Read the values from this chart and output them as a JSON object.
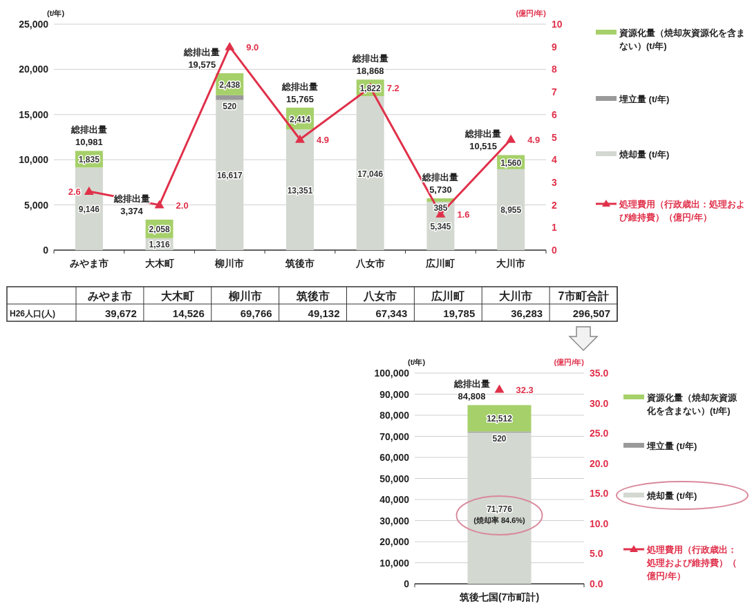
{
  "chart_data": [
    {
      "type": "bar",
      "stacked": true,
      "categories": [
        "みやま市",
        "大木町",
        "柳川市",
        "筑後市",
        "八女市",
        "広川町",
        "大川市"
      ],
      "ylabel": "(t/年)",
      "y2label": "(億円/年)",
      "ylim": [
        0,
        25000
      ],
      "yticks": [
        0,
        {
          "value": 5000,
          "label": "5,000"
        },
        {
          "value": 10000,
          "label": "10,000"
        },
        {
          "value": 15000,
          "label": "15,000"
        },
        {
          "value": 20000,
          "label": "20,000"
        },
        {
          "value": 25000,
          "label": "25,000"
        }
      ],
      "y2lim": [
        0,
        10
      ],
      "y2ticks": [
        0,
        1,
        2,
        3,
        4,
        5,
        6,
        7,
        8,
        9,
        10
      ],
      "grid": "y",
      "legend": "right",
      "series": [
        {
          "name": "焼却量 (t/年)",
          "color": "#d3d8d0",
          "values": [
            9146,
            1316,
            16617,
            13351,
            17046,
            5345,
            8955
          ],
          "value_labels": [
            "9,146",
            "1,316",
            "16,617",
            "13,351",
            "17,046",
            "5,345",
            "8,955"
          ]
        },
        {
          "name": "埋立量 (t/年)",
          "color": "#9a9a9a",
          "values": [
            0,
            0,
            520,
            0,
            0,
            0,
            0
          ],
          "value_labels": [
            null,
            null,
            "520",
            null,
            null,
            null,
            null
          ]
        },
        {
          "name": "資源化量（焼却灰資源化を含まない）(t/年)",
          "color": "#a6d06a",
          "values": [
            1835,
            2058,
            2438,
            2414,
            1822,
            385,
            1560
          ],
          "value_labels": [
            "1,835",
            "2,058",
            "2,438",
            "2,414",
            "1,822",
            "385",
            "1,560"
          ]
        },
        {
          "name": "処理費用（行政歳出：処理および維持費）（億円/年）",
          "type": "line",
          "axis": "y2",
          "color": "#e0304a",
          "marker": "triangle",
          "values": [
            2.6,
            2.0,
            9.0,
            4.9,
            7.2,
            1.6,
            4.9
          ],
          "value_labels": [
            "2.6",
            "2.0",
            "9.0",
            "4.9",
            "7.2",
            "1.6",
            "4.9"
          ]
        }
      ],
      "totals": [
        "総排出量 10,981",
        "総排出量 3,374",
        "総排出量 19,575",
        "総排出量 15,765",
        "総排出量 18,868",
        "総排出量 5,730",
        "総排出量 10,515"
      ]
    },
    {
      "type": "other",
      "categories": [
        "みやま市",
        "大木町",
        "柳川市",
        "筑後市",
        "八女市",
        "広川町",
        "大川市",
        "7市町合計"
      ],
      "y_categories": [
        "H26人口(人)"
      ],
      "cell_labels": [
        [
          "39,672",
          "14,526",
          "69,766",
          "49,132",
          "67,343",
          "19,785",
          "36,283",
          "296,507"
        ]
      ]
    },
    {
      "type": "bar",
      "stacked": true,
      "categories": [
        "筑後七国(7市町計)"
      ],
      "ylabel": "(t/年)",
      "y2label": "(億円/年)",
      "ylim": [
        0,
        100000
      ],
      "yticks": [
        0,
        {
          "value": 10000,
          "label": "10,000"
        },
        {
          "value": 20000,
          "label": "20,000"
        },
        {
          "value": 30000,
          "label": "30,000"
        },
        {
          "value": 40000,
          "label": "40,000"
        },
        {
          "value": 50000,
          "label": "50,000"
        },
        {
          "value": 60000,
          "label": "60,000"
        },
        {
          "value": 70000,
          "label": "70,000"
        },
        {
          "value": 80000,
          "label": "80,000"
        },
        {
          "value": 90000,
          "label": "90,000"
        },
        {
          "value": 100000,
          "label": "100,000"
        }
      ],
      "y2lim": [
        0,
        35
      ],
      "y2ticks": [
        {
          "value": 0,
          "label": "0.0"
        },
        {
          "value": 5,
          "label": "5.0"
        },
        {
          "value": 10,
          "label": "10.0"
        },
        {
          "value": 15,
          "label": "15.0"
        },
        {
          "value": 20,
          "label": "20.0"
        },
        {
          "value": 25,
          "label": "25.0"
        },
        {
          "value": 30,
          "label": "30.0"
        },
        {
          "value": 35,
          "label": "35.0"
        }
      ],
      "grid": "y",
      "legend": "right",
      "series": [
        {
          "name": "焼却量 (t/年)",
          "color": "#d3d8d0",
          "values": [
            71776
          ],
          "value_labels": [
            "71,776"
          ]
        },
        {
          "name": "埋立量 (t/年)",
          "color": "#9a9a9a",
          "values": [
            520
          ],
          "value_labels": [
            "520"
          ]
        },
        {
          "name": "資源化量（焼却灰資源化を含まない）(t/年)",
          "color": "#a6d06a",
          "values": [
            12512
          ],
          "value_labels": [
            "12,512"
          ]
        },
        {
          "name": "処理費用（行政歳出：処理および維持費）（億円/年）",
          "type": "line",
          "axis": "y2",
          "color": "#e0304a",
          "marker": "triangle",
          "values": [
            32.3
          ],
          "value_labels": [
            "32.3"
          ]
        }
      ],
      "totals": [
        "総排出量 84,808"
      ],
      "annotations": [
        "(焼却率 84.6%)"
      ]
    }
  ]
}
